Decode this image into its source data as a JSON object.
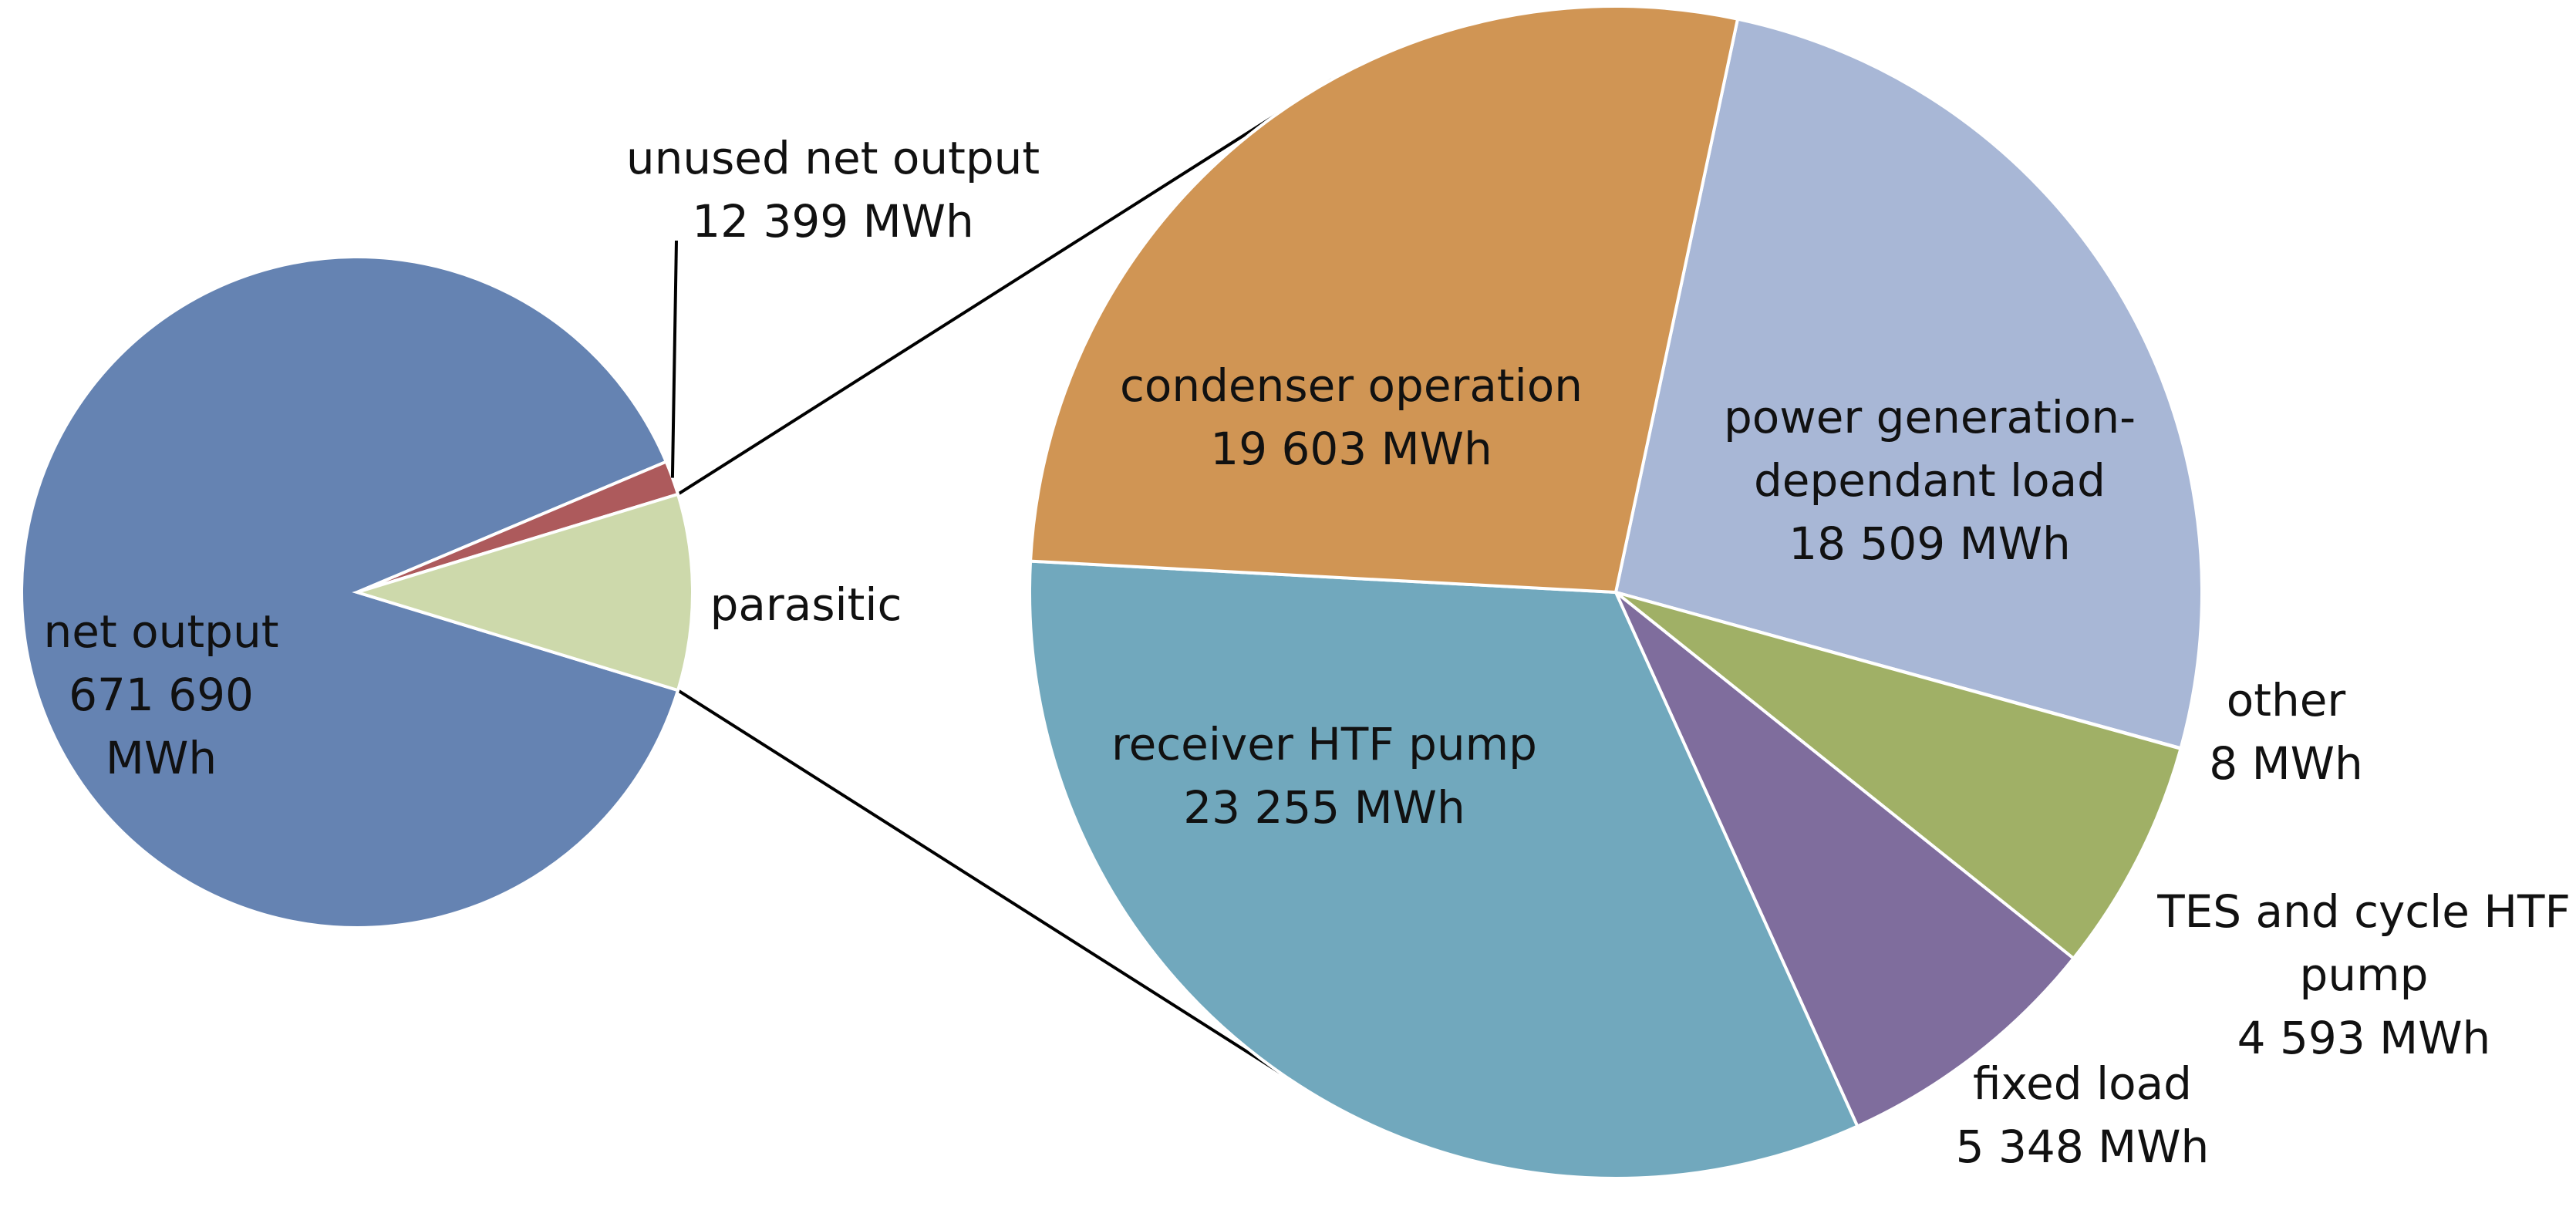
{
  "chart_data": [
    {
      "type": "pie",
      "slices": [
        {
          "name": "net output",
          "value": 671690,
          "color": "#6583b2",
          "label_lines": [
            "net output",
            "671 690",
            "MWh"
          ]
        },
        {
          "name": "unused net output",
          "value": 12399,
          "color": "#ad5a5c",
          "label_lines": [
            "unused net output",
            "12 399 MWh"
          ]
        },
        {
          "name": "parasitic",
          "value": 71316,
          "color": "#cdd9ab",
          "label_lines": [
            "parasitic"
          ]
        }
      ]
    },
    {
      "type": "pie",
      "slices": [
        {
          "name": "power generation-dependant load",
          "value": 18509,
          "color": "#a8b7d6",
          "label_lines": [
            "power generation-",
            "dependant load",
            "18 509 MWh"
          ]
        },
        {
          "name": "other",
          "value": 8,
          "color": "#c4d0a6",
          "label_lines": [
            "other",
            "8 MWh"
          ]
        },
        {
          "name": "TES and cycle HTF pump",
          "value": 4593,
          "color": "#a0b066",
          "label_lines": [
            "TES and cycle HTF",
            "pump",
            "4 593 MWh"
          ]
        },
        {
          "name": "fixed load",
          "value": 5348,
          "color": "#7f6d9d",
          "label_lines": [
            "fixed load",
            "5 348 MWh"
          ]
        },
        {
          "name": "receiver HTF pump",
          "value": 23255,
          "color": "#71a8bd",
          "label_lines": [
            "receiver HTF pump",
            "23 255 MWh"
          ]
        },
        {
          "name": "condenser operation",
          "value": 19603,
          "color": "#d09554",
          "label_lines": [
            "condenser operation",
            "19 603 MWh"
          ]
        }
      ]
    }
  ]
}
